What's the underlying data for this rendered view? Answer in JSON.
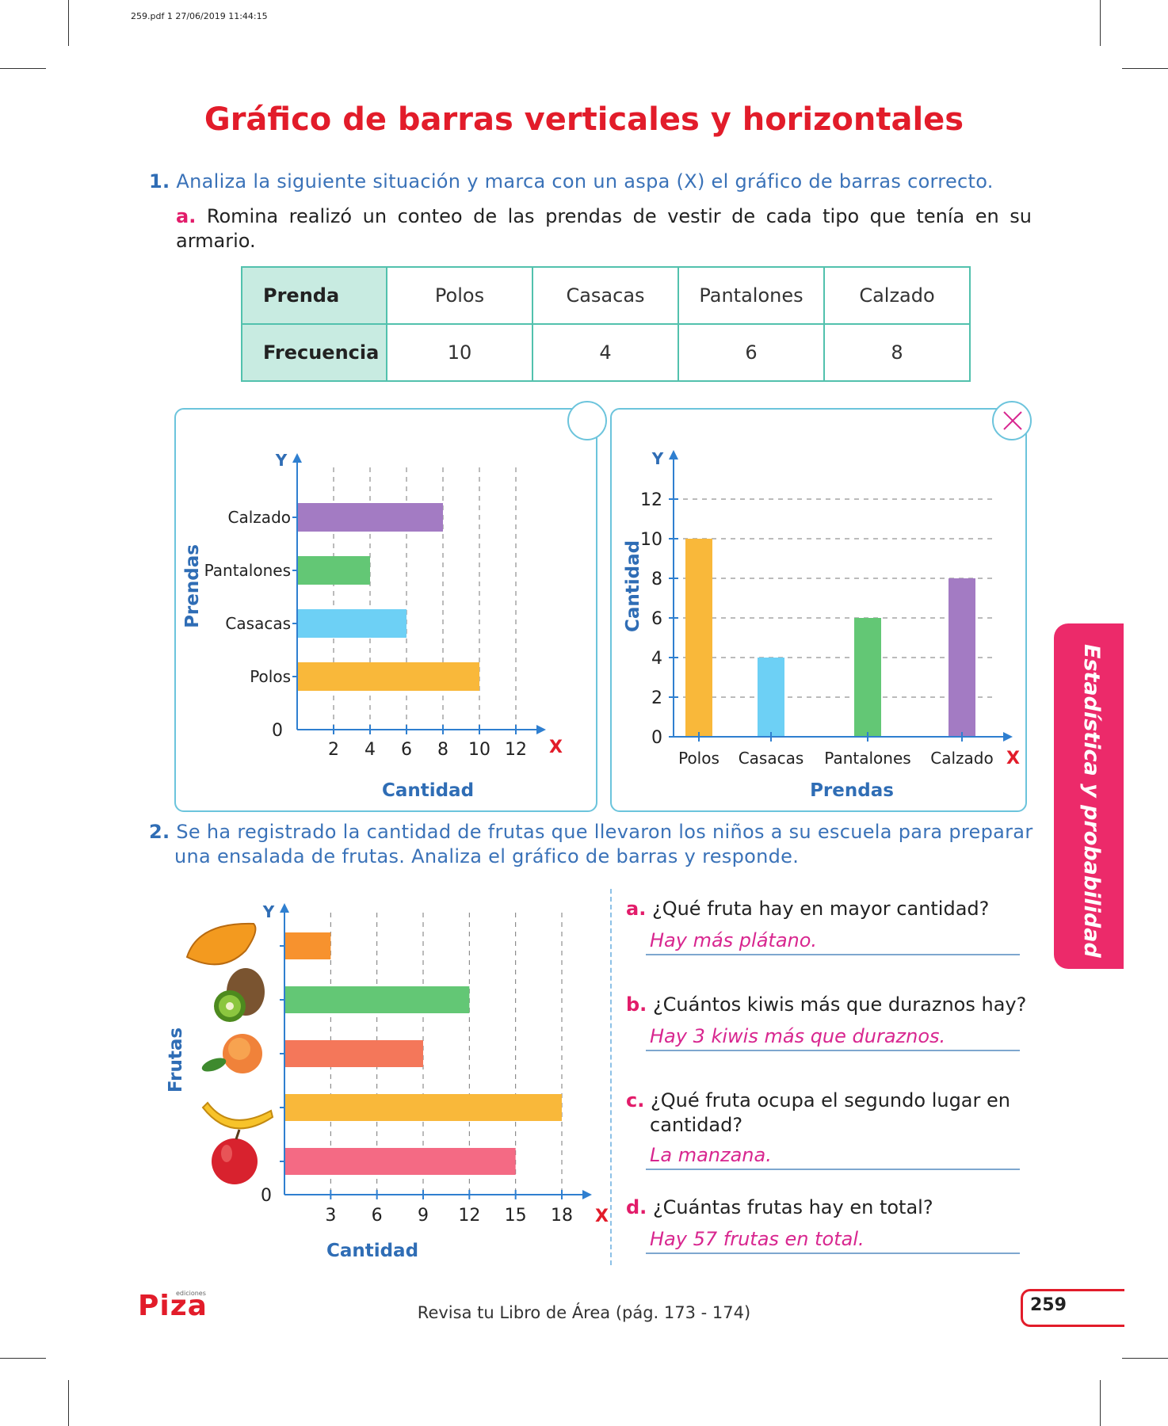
{
  "header": {
    "slug": "259.pdf   1   27/06/2019   11:44:15"
  },
  "title": "Gráfico de barras verticales y horizontales",
  "q1": {
    "number": "1.",
    "text": "Analiza la siguiente situación y marca con un aspa (X) el gráfico de barras correcto.",
    "sub_letter": "a.",
    "sub_text": "Romina realizó un conteo de las prendas de vestir de cada tipo que tenía en su armario.",
    "table": {
      "row1_header": "Prenda",
      "row2_header": "Frecuencia",
      "items": [
        "Polos",
        "Casacas",
        "Pantalones",
        "Calzado"
      ],
      "freqs": [
        "10",
        "4",
        "6",
        "8"
      ]
    }
  },
  "chart_data": [
    {
      "type": "bar",
      "orientation": "horizontal",
      "categories": [
        "Polos",
        "Casacas",
        "Pantalones",
        "Calzado"
      ],
      "values": [
        10,
        6,
        4,
        8
      ],
      "xlabel": "Cantidad",
      "ylabel": "Prendas",
      "x_axis_letter": "X",
      "y_axis_letter": "Y",
      "origin_label": "0",
      "xticks": [
        "2",
        "4",
        "6",
        "8",
        "10",
        "12"
      ],
      "xlim": [
        0,
        12
      ],
      "colors": [
        "#f9b83a",
        "#6dd0f5",
        "#63c775",
        "#a37bc3"
      ],
      "selected": false
    },
    {
      "type": "bar",
      "orientation": "vertical",
      "categories": [
        "Polos",
        "Casacas",
        "Pantalones",
        "Calzado"
      ],
      "values": [
        10,
        4,
        6,
        8
      ],
      "xlabel": "Prendas",
      "ylabel": "Cantidad",
      "x_axis_letter": "X",
      "y_axis_letter": "Y",
      "yticks": [
        "0",
        "2",
        "4",
        "6",
        "8",
        "10",
        "12"
      ],
      "ylim": [
        0,
        12
      ],
      "colors": [
        "#f9b83a",
        "#6dd0f5",
        "#63c775",
        "#a37bc3"
      ],
      "selected": true
    },
    {
      "type": "bar",
      "orientation": "horizontal",
      "categories": [
        "manzana",
        "plátano",
        "durazno",
        "kiwi",
        "papaya"
      ],
      "values": [
        15,
        18,
        9,
        12,
        3
      ],
      "xlabel": "Cantidad",
      "ylabel": "Frutas",
      "x_axis_letter": "X",
      "y_axis_letter": "Y",
      "origin_label": "0",
      "xticks": [
        "3",
        "6",
        "9",
        "12",
        "15",
        "18"
      ],
      "xlim": [
        0,
        18
      ],
      "colors": [
        "#f46a84",
        "#f9b83a",
        "#f4775a",
        "#63c775",
        "#f7922e"
      ]
    }
  ],
  "q2": {
    "number": "2.",
    "text_line1": "Se ha registrado la cantidad de frutas que llevaron los niños a su escuela para preparar",
    "text_line2": "una ensalada de frutas. Analiza el gráfico de barras y responde.",
    "questions": [
      {
        "letter": "a.",
        "q": "¿Qué fruta hay en mayor cantidad?",
        "q2": "",
        "a": "Hay más plátano."
      },
      {
        "letter": "b.",
        "q": "¿Cuántos kiwis más que duraznos hay?",
        "q2": "",
        "a": "Hay 3 kiwis más que duraznos."
      },
      {
        "letter": "c.",
        "q": "¿Qué fruta ocupa el segundo lugar en",
        "q2": "cantidad?",
        "a": "La manzana."
      },
      {
        "letter": "d.",
        "q": "¿Cuántas frutas hay en total?",
        "q2": "",
        "a": "Hay 57 frutas en total."
      }
    ]
  },
  "side_tab": "Estadística y probabilidad",
  "footer": {
    "text": "Revisa tu Libro de Área (pág. 173 - 174)",
    "page": "259",
    "logo": "Piza",
    "logo_small": "ediciones"
  },
  "colors": {
    "title": "#e21c2a",
    "question": "#3a72b8",
    "answer": "#d8268f",
    "panel_border": "#6cc4dc",
    "tab": "#ec2a6a"
  }
}
